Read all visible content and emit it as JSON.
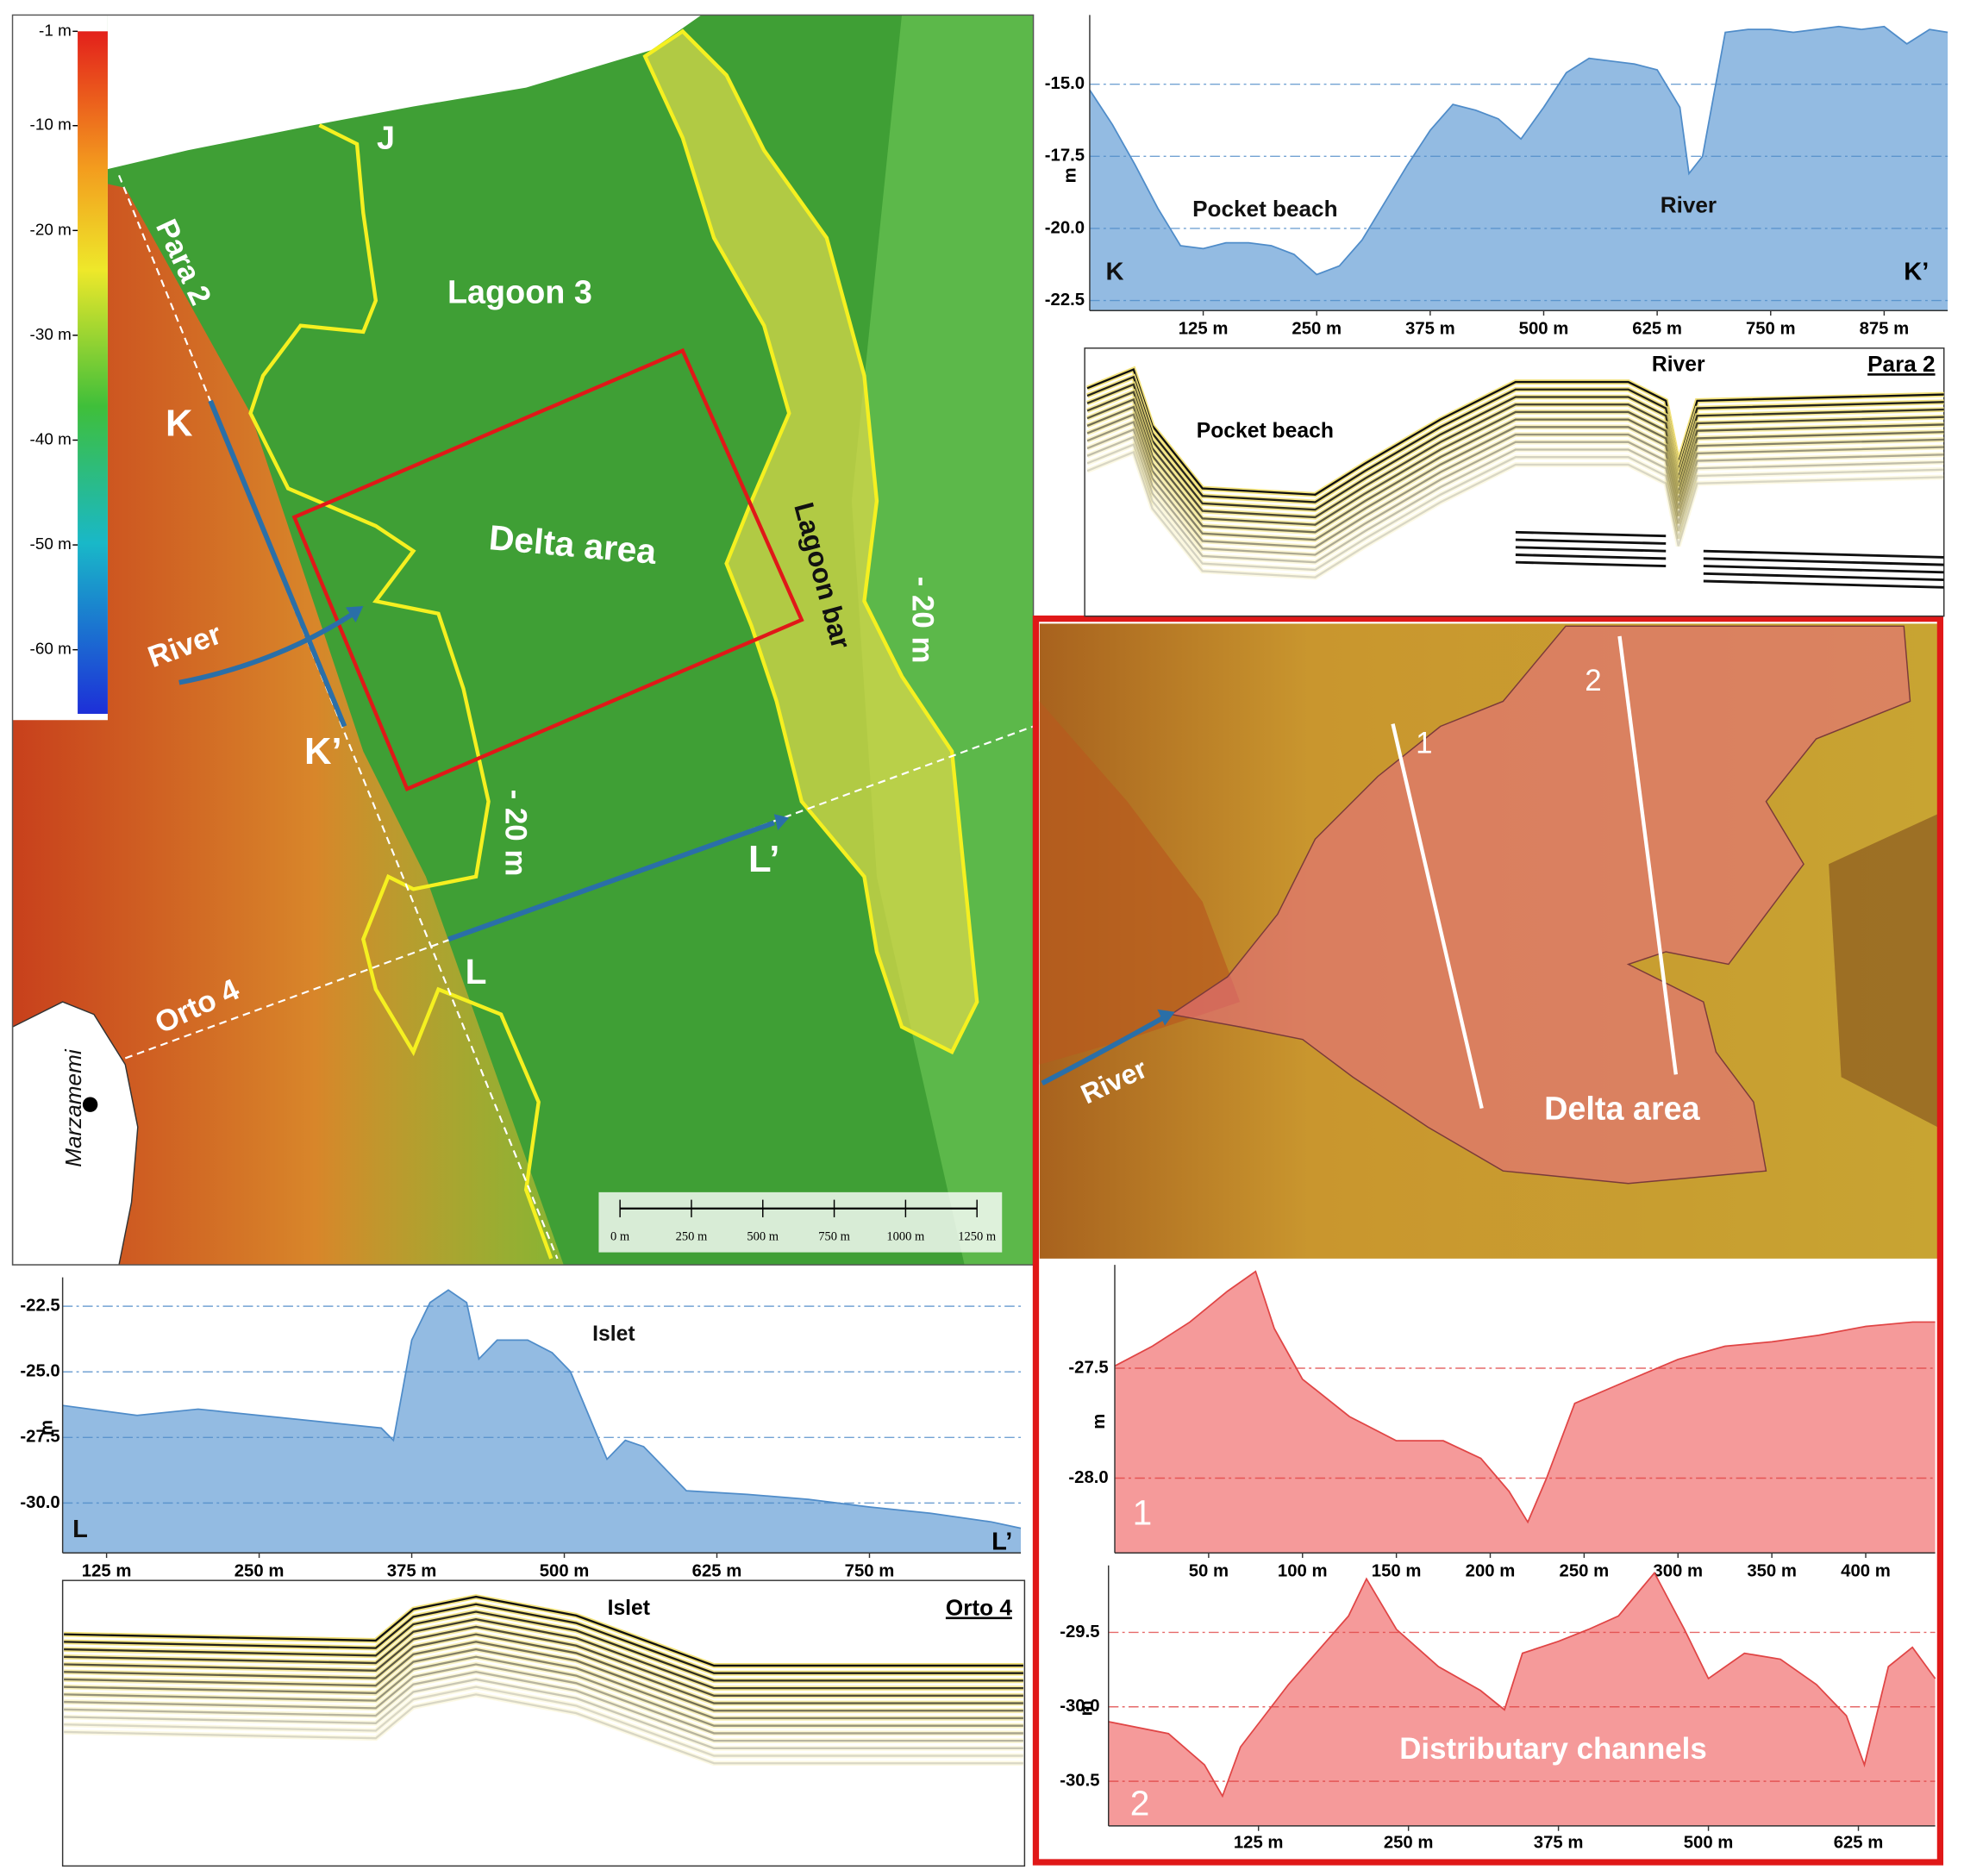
{
  "map": {
    "colorbar": {
      "ticks": [
        {
          "value": -1,
          "label": "-1 m"
        },
        {
          "value": -10,
          "label": "-10 m"
        },
        {
          "value": -20,
          "label": "-20 m"
        },
        {
          "value": -30,
          "label": "-30 m"
        },
        {
          "value": -40,
          "label": "-40 m"
        },
        {
          "value": -50,
          "label": "-50 m"
        },
        {
          "value": -60,
          "label": "-60 m"
        }
      ]
    },
    "labels": [
      "J",
      "Para 2",
      "Lagoon 3",
      "K",
      "Delta area",
      "Lagoon bar",
      "- 20 m",
      "River",
      "K’",
      "- 20 m",
      "L’",
      "L",
      "Orto 4",
      "Marzamemi"
    ],
    "scale_bar": {
      "ticks": [
        {
          "value": 0,
          "label": "0 m"
        },
        {
          "value": 250,
          "label": "250 m"
        },
        {
          "value": 500,
          "label": "500 m"
        },
        {
          "value": 750,
          "label": "750 m"
        },
        {
          "value": 1000,
          "label": "1000 m"
        },
        {
          "value": 1250,
          "label": "1250 m"
        }
      ]
    }
  },
  "seismic": [
    {
      "title": "Para 2",
      "labels": [
        "River",
        "Pocket beach"
      ]
    },
    {
      "title": "Orto 4",
      "labels": [
        "Islet"
      ]
    }
  ],
  "delta_inset": {
    "labels": [
      "1",
      "2",
      "River",
      "Delta area"
    ]
  },
  "chart_data": [
    {
      "type": "area",
      "y_label": "m",
      "start_label": "K",
      "end_label": "K’",
      "annotations": [
        "Pocket beach",
        "River"
      ],
      "color": "#93bbe2",
      "line_color": "#4f8cc9",
      "grid": true,
      "x": [
        0,
        25,
        50,
        75,
        100,
        125,
        150,
        175,
        200,
        225,
        250,
        275,
        300,
        325,
        350,
        375,
        400,
        425,
        450,
        475,
        500,
        525,
        550,
        575,
        600,
        625,
        650,
        660,
        675,
        700,
        725,
        750,
        775,
        800,
        825,
        850,
        875,
        900,
        925,
        945
      ],
      "values": [
        -15.2,
        -16.4,
        -17.8,
        -19.3,
        -20.6,
        -20.7,
        -20.5,
        -20.5,
        -20.6,
        -20.9,
        -21.6,
        -21.3,
        -20.4,
        -19.1,
        -17.8,
        -16.6,
        -15.7,
        -15.9,
        -16.2,
        -16.9,
        -15.8,
        -14.6,
        -14.1,
        -14.2,
        -14.3,
        -14.5,
        -15.8,
        -18.1,
        -17.5,
        -13.2,
        -13.1,
        -13.1,
        -13.2,
        -13.1,
        -13.0,
        -13.1,
        -13.0,
        -13.6,
        -13.1,
        -13.2
      ],
      "xlim": [
        0,
        945
      ],
      "ylim": [
        -22.85,
        -12.6
      ],
      "xticks": [
        {
          "value": 125,
          "label": "125 m"
        },
        {
          "value": 250,
          "label": "250 m"
        },
        {
          "value": 375,
          "label": "375 m"
        },
        {
          "value": 500,
          "label": "500 m"
        },
        {
          "value": 625,
          "label": "625 m"
        },
        {
          "value": 750,
          "label": "750 m"
        },
        {
          "value": 875,
          "label": "875 m"
        }
      ],
      "yticks": [
        {
          "value": -15,
          "label": "-15.0"
        },
        -17.5,
        {
          "value": -20,
          "label": "-20.0"
        },
        -22.5
      ]
    },
    {
      "type": "area",
      "y_label": "m",
      "start_label": "L",
      "end_label": "L’",
      "annotations": [
        "Islet"
      ],
      "color": "#93bbe2",
      "line_color": "#4f8cc9",
      "grid": true,
      "x": [
        89,
        150,
        200,
        250,
        300,
        350,
        360,
        375,
        390,
        405,
        420,
        430,
        445,
        470,
        490,
        505,
        520,
        535,
        550,
        565,
        585,
        600,
        650,
        700,
        750,
        800,
        850,
        874
      ],
      "values": [
        -26.28,
        -26.66,
        -26.42,
        -26.66,
        -26.9,
        -27.14,
        -27.61,
        -23.79,
        -22.36,
        -21.88,
        -22.36,
        -24.51,
        -23.79,
        -23.79,
        -24.27,
        -24.99,
        -26.66,
        -28.33,
        -27.61,
        -27.85,
        -28.81,
        -29.53,
        -29.67,
        -29.86,
        -30.15,
        -30.39,
        -30.72,
        -30.96
      ],
      "xlim": [
        89,
        874
      ],
      "ylim": [
        -31.9,
        -21.4
      ],
      "xticks": [
        {
          "value": 125,
          "label": "125 m"
        },
        {
          "value": 250,
          "label": "250 m"
        },
        {
          "value": 375,
          "label": "375 m"
        },
        {
          "value": 500,
          "label": "500 m"
        },
        {
          "value": 625,
          "label": "625 m"
        },
        {
          "value": 750,
          "label": "750 m"
        }
      ],
      "yticks": [
        -22.5,
        {
          "value": -25,
          "label": "-25.0"
        },
        -27.5,
        {
          "value": -30,
          "label": "-30.0"
        }
      ]
    },
    {
      "type": "area",
      "y_label": "m",
      "start_label": "1",
      "annotations": [],
      "color": "#f59a9a",
      "line_color": "#e04545",
      "grid": true,
      "x": [
        0,
        20,
        40,
        60,
        75,
        85,
        100,
        125,
        150,
        175,
        195,
        210,
        220,
        230,
        245,
        275,
        300,
        325,
        350,
        375,
        400,
        425,
        437
      ],
      "values": [
        -27.49,
        -27.4,
        -27.29,
        -27.15,
        -27.06,
        -27.32,
        -27.55,
        -27.72,
        -27.83,
        -27.83,
        -27.91,
        -28.06,
        -28.2,
        -28.0,
        -27.66,
        -27.55,
        -27.46,
        -27.4,
        -27.38,
        -27.35,
        -27.31,
        -27.29,
        -27.29
      ],
      "xlim": [
        0,
        437
      ],
      "ylim": [
        -28.34,
        -27.03
      ],
      "xticks": [
        {
          "value": 50,
          "label": "50 m"
        },
        {
          "value": 100,
          "label": "100 m"
        },
        {
          "value": 150,
          "label": "150 m"
        },
        {
          "value": 200,
          "label": "200 m"
        },
        {
          "value": 250,
          "label": "250 m"
        },
        {
          "value": 300,
          "label": "300 m"
        },
        {
          "value": 350,
          "label": "350 m"
        },
        {
          "value": 400,
          "label": "400 m"
        }
      ],
      "yticks": [
        -27.5,
        {
          "value": -28,
          "label": "-28.0"
        }
      ]
    },
    {
      "type": "area",
      "y_label": "m",
      "start_label": "2",
      "annotations": [
        "Distributary channels"
      ],
      "color": "#f59a9a",
      "line_color": "#e04545",
      "grid": true,
      "x": [
        0,
        50,
        80,
        95,
        110,
        150,
        200,
        215,
        240,
        275,
        310,
        330,
        345,
        375,
        400,
        425,
        455,
        480,
        500,
        530,
        560,
        590,
        615,
        630,
        650,
        670,
        689
      ],
      "values": [
        -30.1,
        -30.18,
        -30.39,
        -30.6,
        -30.27,
        -29.85,
        -29.39,
        -29.14,
        -29.48,
        -29.73,
        -29.89,
        -30.02,
        -29.64,
        -29.56,
        -29.48,
        -29.39,
        -29.1,
        -29.48,
        -29.81,
        -29.64,
        -29.68,
        -29.85,
        -30.06,
        -30.39,
        -29.73,
        -29.6,
        -29.81
      ],
      "xlim": [
        0,
        689
      ],
      "ylim": [
        -30.8,
        -29.05
      ],
      "xticks": [
        {
          "value": 125,
          "label": "125 m"
        },
        {
          "value": 250,
          "label": "250 m"
        },
        {
          "value": 375,
          "label": "375 m"
        },
        {
          "value": 500,
          "label": "500 m"
        },
        {
          "value": 625,
          "label": "625 m"
        }
      ],
      "yticks": [
        -29.5,
        {
          "value": -30,
          "label": "-30.0"
        },
        -30.5
      ]
    }
  ]
}
